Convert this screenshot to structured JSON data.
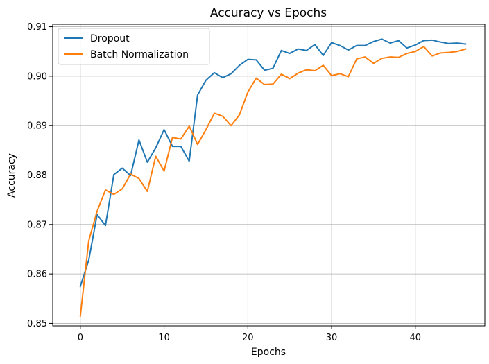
{
  "chart_data": {
    "type": "line",
    "title": "Accuracy vs Epochs",
    "xlabel": "Epochs",
    "ylabel": "Accuracy",
    "xlim": [
      -3.3,
      48.3
    ],
    "ylim": [
      0.8495,
      0.9105
    ],
    "xticks": [
      0,
      10,
      20,
      30,
      40
    ],
    "yticks": [
      0.85,
      0.86,
      0.87,
      0.88,
      0.89,
      0.9,
      0.91
    ],
    "ytick_labels": [
      "0.85",
      "0.86",
      "0.87",
      "0.88",
      "0.89",
      "0.90",
      "0.91"
    ],
    "grid": true,
    "legend_position": "top-left",
    "x": [
      0,
      1,
      2,
      3,
      4,
      5,
      6,
      7,
      8,
      9,
      10,
      11,
      12,
      13,
      14,
      15,
      16,
      17,
      18,
      19,
      20,
      21,
      22,
      23,
      24,
      25,
      26,
      27,
      28,
      29,
      30,
      31,
      32,
      33,
      34,
      35,
      36,
      37,
      38,
      39,
      40,
      41,
      42,
      43,
      44,
      45,
      46
    ],
    "series": [
      {
        "name": "Dropout",
        "color": "#1f77b4",
        "values": [
          0.8575,
          0.8628,
          0.872,
          0.8698,
          0.8801,
          0.8814,
          0.8799,
          0.8871,
          0.8826,
          0.8855,
          0.8892,
          0.8858,
          0.8858,
          0.8828,
          0.8962,
          0.8992,
          0.9007,
          0.8997,
          0.9005,
          0.9022,
          0.9034,
          0.9033,
          0.9012,
          0.9016,
          0.9052,
          0.9046,
          0.9055,
          0.9052,
          0.9064,
          0.9042,
          0.9068,
          0.9062,
          0.9053,
          0.9062,
          0.9062,
          0.907,
          0.9075,
          0.9067,
          0.9072,
          0.9057,
          0.9063,
          0.9072,
          0.9073,
          0.9069,
          0.9066,
          0.9067,
          0.9065
        ]
      },
      {
        "name": "Batch Normalization",
        "color": "#ff7f0e",
        "values": [
          0.8515,
          0.8667,
          0.8727,
          0.877,
          0.8761,
          0.8772,
          0.8802,
          0.8793,
          0.8767,
          0.8838,
          0.8808,
          0.8876,
          0.8873,
          0.8899,
          0.8862,
          0.8892,
          0.8925,
          0.8919,
          0.89,
          0.8922,
          0.8968,
          0.8996,
          0.8983,
          0.8984,
          0.9004,
          0.8995,
          0.9006,
          0.9013,
          0.9011,
          0.9022,
          0.9001,
          0.9005,
          0.8999,
          0.9035,
          0.9039,
          0.9026,
          0.9036,
          0.9039,
          0.9038,
          0.9046,
          0.905,
          0.906,
          0.9041,
          0.9047,
          0.9048,
          0.905,
          0.9055
        ]
      }
    ]
  }
}
